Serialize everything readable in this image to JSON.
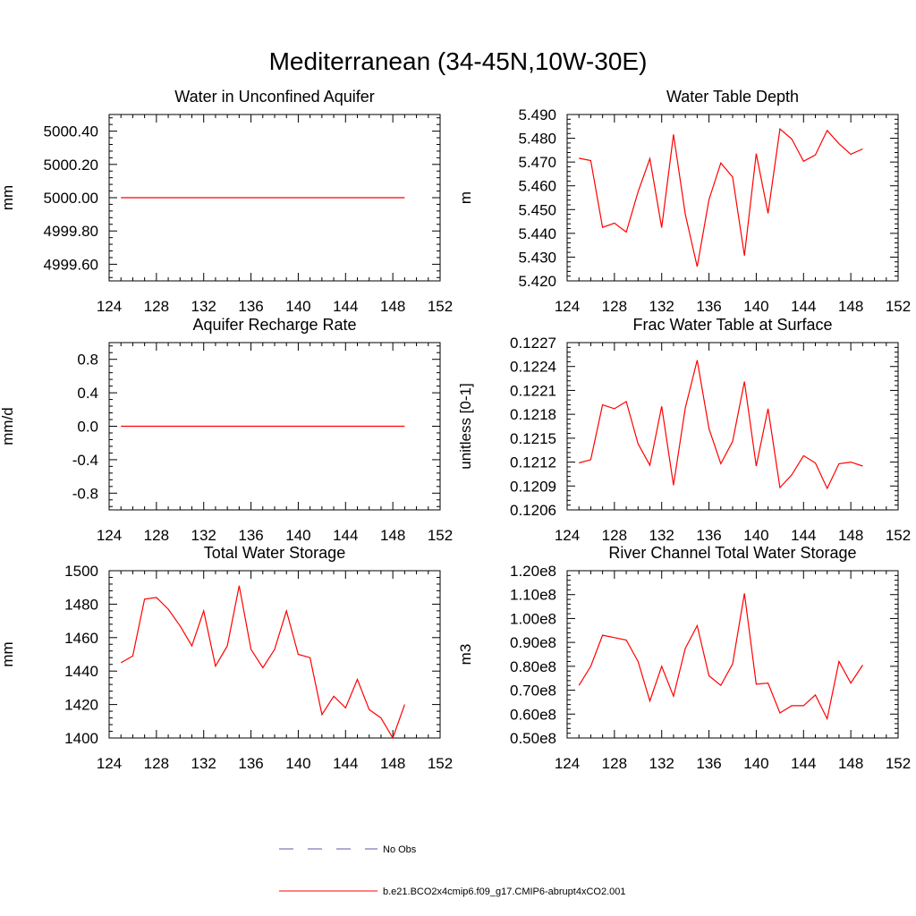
{
  "figure_title": "Mediterranean (34-45N,10W-30E)",
  "colors": {
    "model": "#ff0000",
    "obs": "#5a5aa8",
    "axis": "#000000"
  },
  "legend": {
    "obs_label": "No Obs",
    "model_label": "b.e21.BCO2x4cmip6.f09_g17.CMIP6-abrupt4xCO2.001"
  },
  "chart_data": [
    {
      "type": "line",
      "title": "Water in Unconfined Aquifer",
      "ylabel": "mm",
      "xlim": [
        124,
        152
      ],
      "xticks": [
        124,
        128,
        132,
        136,
        140,
        144,
        148,
        152
      ],
      "ylim": [
        4999.5,
        5000.5
      ],
      "yticks": [
        4999.6,
        4999.8,
        5000.0,
        5000.2,
        5000.4
      ],
      "yticklabels": [
        "4999.60",
        "4999.80",
        "5000.00",
        "5000.20",
        "5000.40"
      ],
      "x": [
        125,
        149
      ],
      "y": [
        5000.0,
        5000.0
      ]
    },
    {
      "type": "line",
      "title": "Water Table Depth",
      "ylabel": "m",
      "xlim": [
        124,
        152
      ],
      "xticks": [
        124,
        128,
        132,
        136,
        140,
        144,
        148,
        152
      ],
      "ylim": [
        5.42,
        5.49
      ],
      "yticks": [
        5.42,
        5.43,
        5.44,
        5.45,
        5.46,
        5.47,
        5.48,
        5.49
      ],
      "yticklabels": [
        "5.420",
        "5.430",
        "5.440",
        "5.450",
        "5.460",
        "5.470",
        "5.480",
        "5.490"
      ],
      "x": [
        125,
        126,
        127,
        128,
        129,
        130,
        131,
        132,
        133,
        134,
        135,
        136,
        137,
        138,
        139,
        140,
        141,
        142,
        143,
        144,
        145,
        146,
        147,
        148,
        149
      ],
      "y": [
        5.4716,
        5.4706,
        5.4425,
        5.4443,
        5.4405,
        5.4575,
        5.4714,
        5.4424,
        5.4816,
        5.448,
        5.426,
        5.4542,
        5.4696,
        5.4637,
        5.4306,
        5.4735,
        5.4484,
        5.4839,
        5.4797,
        5.4703,
        5.473,
        5.4833,
        5.4777,
        5.4733,
        5.4755
      ]
    },
    {
      "type": "line",
      "title": "Aquifer Recharge Rate",
      "ylabel": "mm/d",
      "xlim": [
        124,
        152
      ],
      "xticks": [
        124,
        128,
        132,
        136,
        140,
        144,
        148,
        152
      ],
      "ylim": [
        -1.0,
        1.0
      ],
      "yticks": [
        -0.8,
        -0.4,
        0.0,
        0.4,
        0.8
      ],
      "yticklabels": [
        "-0.8",
        "-0.4",
        "0.0",
        "0.4",
        "0.8"
      ],
      "x": [
        125,
        149
      ],
      "y": [
        0.0,
        0.0
      ]
    },
    {
      "type": "line",
      "title": "Frac Water Table at Surface",
      "ylabel": "unitless [0-1]",
      "xlim": [
        124,
        152
      ],
      "xticks": [
        124,
        128,
        132,
        136,
        140,
        144,
        148,
        152
      ],
      "ylim": [
        0.1206,
        0.1227
      ],
      "yticks": [
        0.1206,
        0.1209,
        0.1212,
        0.1215,
        0.1218,
        0.1221,
        0.1224,
        0.1227
      ],
      "yticklabels": [
        "0.1206",
        "0.1209",
        "0.1212",
        "0.1215",
        "0.1218",
        "0.1221",
        "0.1224",
        "0.1227"
      ],
      "x": [
        125,
        126,
        127,
        128,
        129,
        130,
        131,
        132,
        133,
        134,
        135,
        136,
        137,
        138,
        139,
        140,
        141,
        142,
        143,
        144,
        145,
        146,
        147,
        148,
        149
      ],
      "y": [
        0.12119,
        0.12123,
        0.12192,
        0.12187,
        0.12196,
        0.12143,
        0.12116,
        0.1219,
        0.12091,
        0.12188,
        0.12248,
        0.12162,
        0.12118,
        0.12146,
        0.12221,
        0.12115,
        0.12187,
        0.12088,
        0.12104,
        0.12128,
        0.12119,
        0.12087,
        0.12118,
        0.1212,
        0.12115
      ]
    },
    {
      "type": "line",
      "title": "Total Water Storage",
      "ylabel": "mm",
      "xlim": [
        124,
        152
      ],
      "xticks": [
        124,
        128,
        132,
        136,
        140,
        144,
        148,
        152
      ],
      "ylim": [
        1400,
        1500
      ],
      "yticks": [
        1400,
        1420,
        1440,
        1460,
        1480,
        1500
      ],
      "yticklabels": [
        "1400",
        "1420",
        "1440",
        "1460",
        "1480",
        "1500"
      ],
      "x": [
        125,
        126,
        127,
        128,
        129,
        130,
        131,
        132,
        133,
        134,
        135,
        136,
        137,
        138,
        139,
        140,
        141,
        142,
        143,
        144,
        145,
        146,
        147,
        148,
        149
      ],
      "y": [
        1445,
        1449,
        1483,
        1484,
        1477,
        1467,
        1455,
        1476,
        1443,
        1455,
        1491,
        1453,
        1442,
        1453,
        1476,
        1450,
        1448,
        1414,
        1425,
        1418,
        1435,
        1417,
        1412,
        1400,
        1420
      ]
    },
    {
      "type": "line",
      "title": "River Channel Total Water Storage",
      "ylabel": "m3",
      "xlim": [
        124,
        152
      ],
      "xticks": [
        124,
        128,
        132,
        136,
        140,
        144,
        148,
        152
      ],
      "ylim": [
        0.5,
        1.2
      ],
      "yticks": [
        0.5,
        0.6,
        0.7,
        0.8,
        0.9,
        1.0,
        1.1,
        1.2
      ],
      "yticklabels": [
        "0.50e8",
        "0.60e8",
        "0.70e8",
        "0.80e8",
        "0.90e8",
        "1.00e8",
        "1.10e8",
        "1.20e8"
      ],
      "y_scale_note": "values in units of 1e8",
      "x": [
        125,
        126,
        127,
        128,
        129,
        130,
        131,
        132,
        133,
        134,
        135,
        136,
        137,
        138,
        139,
        140,
        141,
        142,
        143,
        144,
        145,
        146,
        147,
        148,
        149
      ],
      "y": [
        0.72,
        0.8,
        0.93,
        0.92,
        0.91,
        0.82,
        0.655,
        0.8,
        0.675,
        0.875,
        0.97,
        0.76,
        0.72,
        0.81,
        1.105,
        0.725,
        0.73,
        0.605,
        0.635,
        0.635,
        0.68,
        0.58,
        0.82,
        0.73,
        0.805
      ]
    }
  ]
}
